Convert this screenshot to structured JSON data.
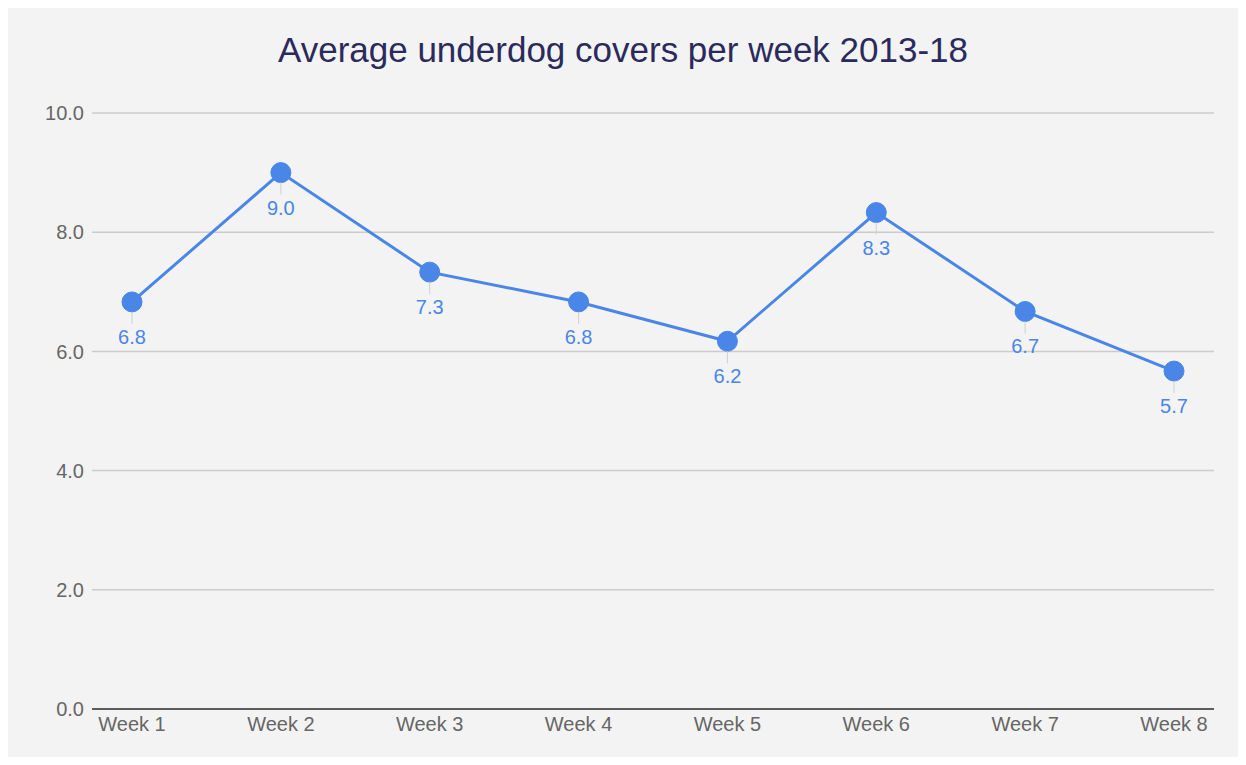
{
  "chart_data": {
    "type": "line",
    "title": "Average underdog covers per week 2013-18",
    "categories": [
      "Week 1",
      "Week 2",
      "Week 3",
      "Week 4",
      "Week 5",
      "Week 6",
      "Week 7",
      "Week 8"
    ],
    "values": [
      6.83,
      9.0,
      7.33,
      6.83,
      6.17,
      8.33,
      6.67,
      5.67
    ],
    "value_labels": [
      "6.8",
      "9.0",
      "7.3",
      "6.8",
      "6.2",
      "8.3",
      "6.7",
      "5.7"
    ],
    "color": "#4a86e8",
    "ylim": [
      0,
      10
    ],
    "yticks": [
      {
        "value": 0,
        "label": "0.0"
      },
      {
        "value": 2,
        "label": "2.0"
      },
      {
        "value": 4,
        "label": "4.0"
      },
      {
        "value": 6,
        "label": "6.0"
      },
      {
        "value": 8,
        "label": "8.0"
      },
      {
        "value": 10,
        "label": "10.0"
      }
    ],
    "grid": true,
    "data_labels": true,
    "marker": "circle"
  }
}
